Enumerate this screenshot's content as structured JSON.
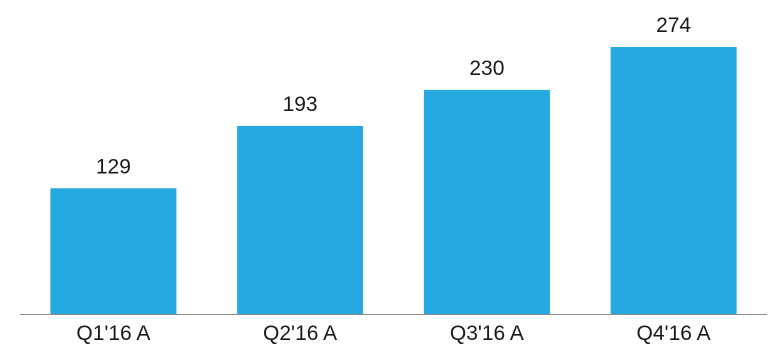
{
  "colors": {
    "bar": "#25A9E0",
    "axis": "#8C8C8C",
    "text": "#1a1a1a"
  },
  "chart_data": {
    "type": "bar",
    "categories": [
      "Q1'16 A",
      "Q2'16 A",
      "Q3'16 A",
      "Q4'16 A"
    ],
    "values": [
      129,
      193,
      230,
      274
    ],
    "data_labels": [
      "129",
      "193",
      "230",
      "274"
    ],
    "title": "",
    "xlabel": "",
    "ylabel": "",
    "ylim": [
      0,
      300
    ],
    "grid": false,
    "legend": "none"
  }
}
